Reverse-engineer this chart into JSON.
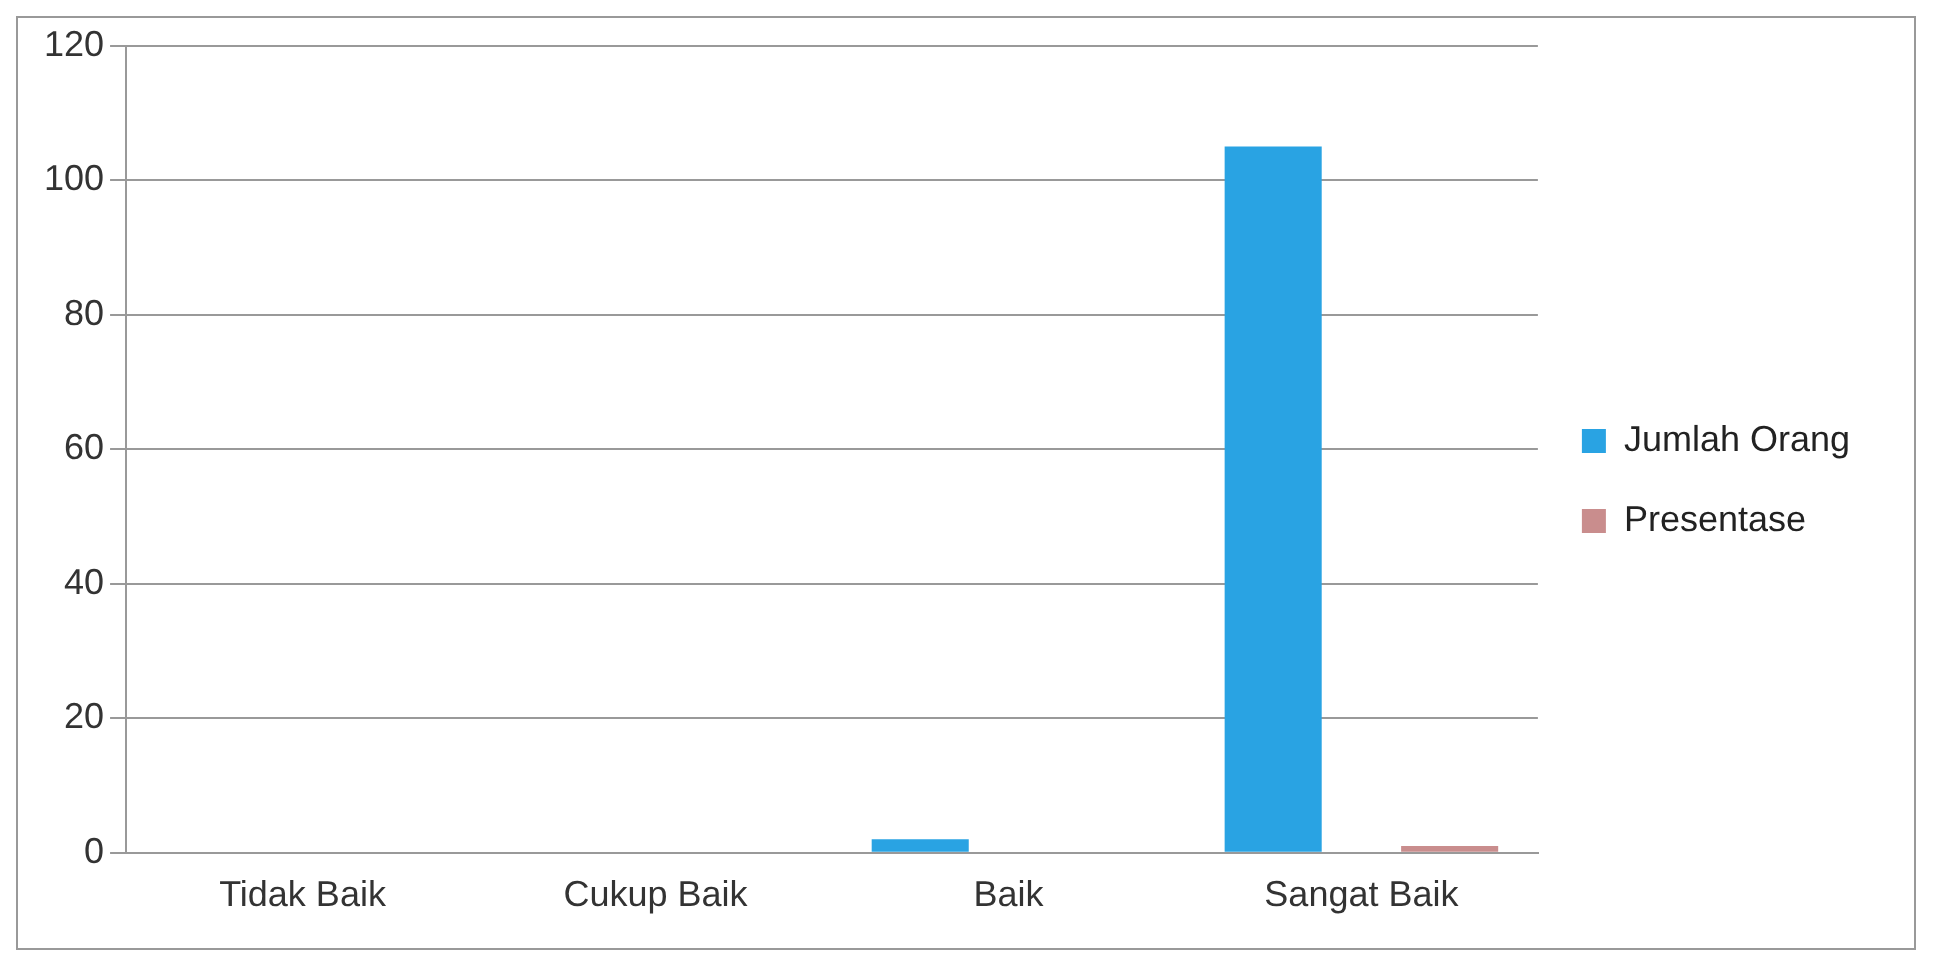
{
  "chart_data": {
    "type": "bar",
    "categories": [
      "Tidak Baik",
      "Cukup Baik",
      "Baik",
      "Sangat Baik"
    ],
    "series": [
      {
        "name": "Jumlah Orang",
        "color": "#29a3e3",
        "values": [
          0,
          0,
          2,
          105
        ]
      },
      {
        "name": "Presentase",
        "color": "#c98d8d",
        "values": [
          0,
          0,
          0,
          1
        ]
      }
    ],
    "ylim": [
      0,
      120
    ],
    "yticks": [
      0,
      20,
      40,
      60,
      80,
      100,
      120
    ],
    "grid": "y",
    "legend": "right"
  }
}
